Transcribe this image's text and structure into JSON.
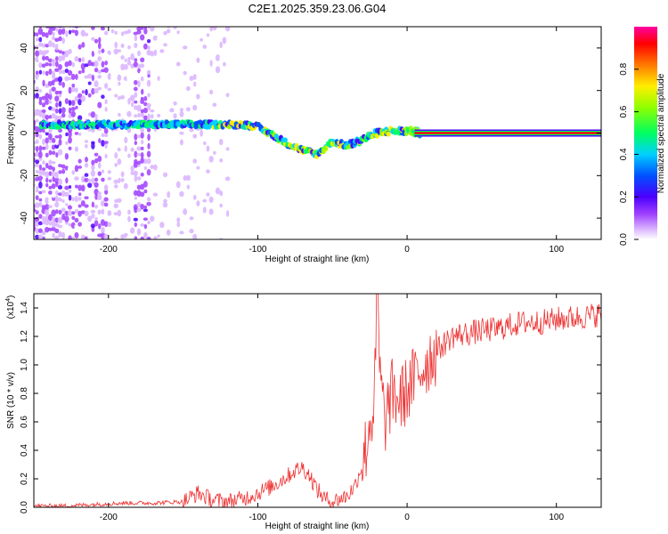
{
  "title": "C2E1.2025.359.23.06.G04",
  "chart_data": [
    {
      "type": "heatmap",
      "xlabel": "Height of straight line (km)",
      "ylabel": "Frequency (Hz)",
      "xlim": [
        -250,
        130
      ],
      "ylim": [
        -50,
        50
      ],
      "xticks": [
        -200,
        -100,
        0,
        100
      ],
      "yticks": [
        40,
        20,
        0,
        -20,
        -40
      ],
      "xtick_labels": [
        "-200",
        "-100",
        "0",
        "100"
      ],
      "ytick_labels": [
        "40",
        "20",
        "0",
        "-20",
        "-40"
      ],
      "colorbar": {
        "label": "Normalized spectral amplitude",
        "range": [
          0,
          1
        ],
        "ticks": [
          "0.0",
          "0.2",
          "0.4",
          "0.6",
          "0.8"
        ],
        "tick_values": [
          0.0,
          0.2,
          0.4,
          0.6,
          0.8
        ],
        "colormap": [
          "#ffffff",
          "#d9b3ff",
          "#a040ff",
          "#6000e0",
          "#0000ff",
          "#00c8ff",
          "#00ff80",
          "#80ff00",
          "#ffff00",
          "#ff8000",
          "#ff0000",
          "#ff00a0"
        ]
      },
      "ridge": {
        "x": [
          -240,
          -220,
          -200,
          -180,
          -160,
          -140,
          -120,
          -110,
          -100,
          -90,
          -80,
          -70,
          -60,
          -50,
          -40,
          -30,
          -20,
          -10,
          0,
          10,
          130
        ],
        "y": [
          4,
          4,
          4,
          4,
          4,
          4,
          4,
          4,
          3,
          -1,
          -5,
          -8,
          -10,
          -4,
          -6,
          -3,
          0,
          1,
          1,
          0,
          0
        ]
      },
      "grid": false
    },
    {
      "type": "line",
      "xlabel": "Height of straight line (km)",
      "ylabel": "SNR (10 * v/v)",
      "y_scale_note": "(x10",
      "y_scale_exp": "4",
      "y_scale_close": ")",
      "xlim": [
        -250,
        130
      ],
      "ylim": [
        0,
        1.5
      ],
      "xticks": [
        -200,
        -100,
        0,
        100
      ],
      "yticks": [
        0.0,
        0.2,
        0.4,
        0.6,
        0.8,
        1.0,
        1.2,
        1.4
      ],
      "xtick_labels": [
        "-200",
        "-100",
        "0",
        "100"
      ],
      "ytick_labels": [
        "0.0",
        "0.2",
        "0.4",
        "0.6",
        "0.8",
        "1.0",
        "1.2",
        "1.4"
      ],
      "color": "#ee3333",
      "series": [
        {
          "x": [
            -250,
            -230,
            -210,
            -190,
            -170,
            -150,
            -140,
            -130,
            -120,
            -110,
            -100,
            -90,
            -80,
            -75,
            -70,
            -65,
            -60,
            -55,
            -50,
            -45,
            -40,
            -35,
            -30,
            -27,
            -25,
            -22,
            -20,
            -18,
            -15,
            -12,
            -10,
            -5,
            0,
            5,
            10,
            15,
            20,
            30,
            40,
            50,
            60,
            70,
            80,
            90,
            100,
            110,
            120,
            130
          ],
          "y": [
            0.01,
            0.01,
            0.02,
            0.03,
            0.03,
            0.04,
            0.1,
            0.05,
            0.04,
            0.06,
            0.1,
            0.15,
            0.22,
            0.26,
            0.28,
            0.22,
            0.12,
            0.06,
            0.04,
            0.06,
            0.08,
            0.15,
            0.3,
            0.45,
            0.6,
            0.7,
            1.45,
            0.9,
            0.6,
            0.72,
            0.8,
            0.75,
            0.82,
            0.9,
            0.98,
            1.05,
            1.1,
            1.2,
            1.22,
            1.24,
            1.25,
            1.28,
            1.3,
            1.3,
            1.32,
            1.33,
            1.34,
            1.36
          ]
        }
      ],
      "grid": false
    }
  ]
}
